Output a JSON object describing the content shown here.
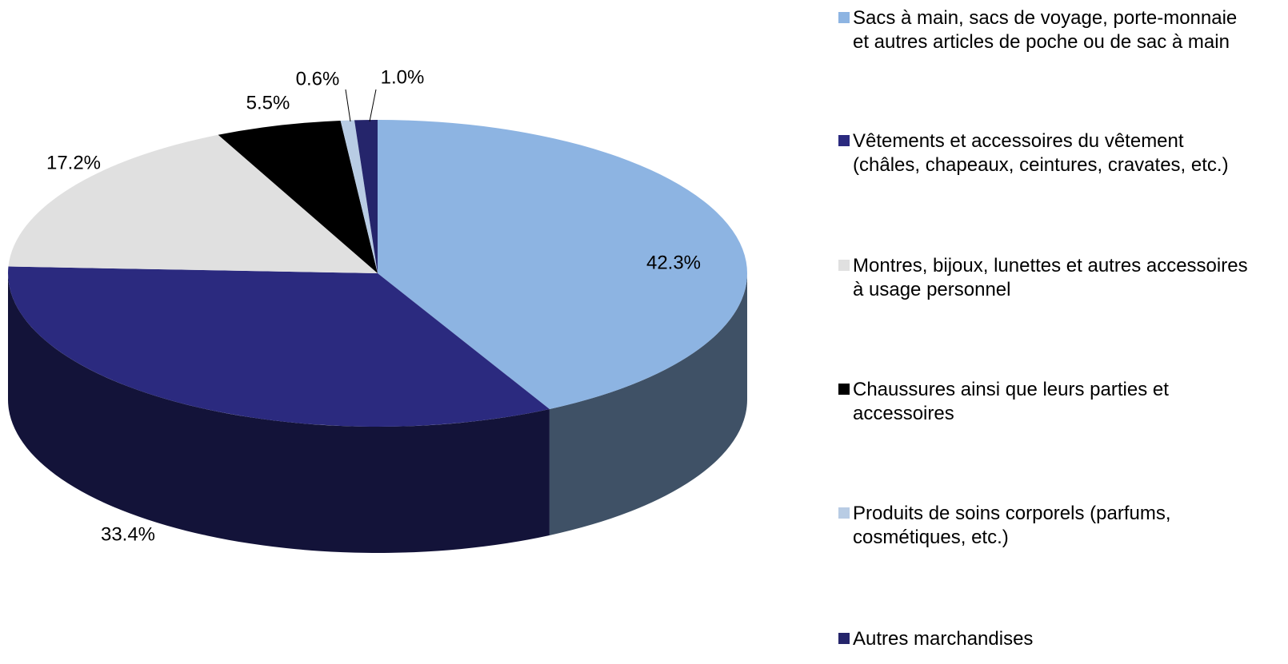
{
  "chart_data": {
    "type": "pie",
    "categories": [
      "Sacs à main, sacs de voyage, porte-monnaie et autres articles de poche ou de sac à main",
      "Vêtements et accessoires du vêtement (châles, chapeaux, ceintures, cravates, etc.)",
      "Montres, bijoux, lunettes et autres accessoires à usage personnel",
      "Chaussures ainsi que leurs parties et accessoires",
      "Produits de soins corporels (parfums, cosmétiques, etc.)",
      "Autres marchandises"
    ],
    "values": [
      42.3,
      33.4,
      17.2,
      5.5,
      0.6,
      1.0
    ],
    "value_labels": [
      "42.3%",
      "33.4%",
      "17.2%",
      "5.5%",
      "0.6%",
      "1.0%"
    ],
    "colors": [
      "#8db4e2",
      "#2b2a7f",
      "#e0e0e0",
      "#000000",
      "#b8cce4",
      "#25256b"
    ]
  }
}
